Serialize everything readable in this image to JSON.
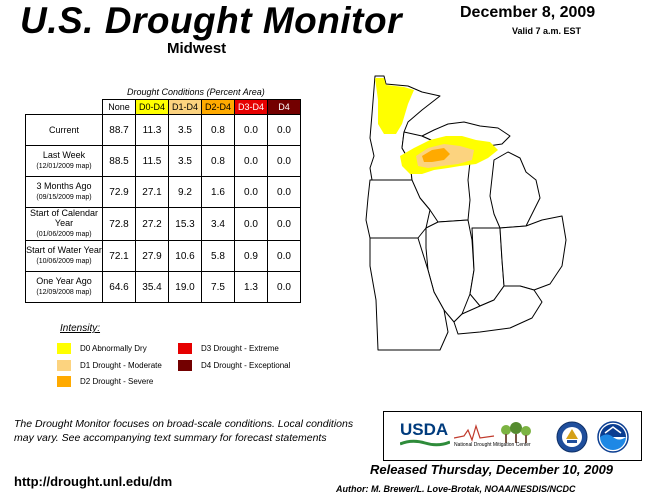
{
  "header": {
    "title": "U.S. Drought Monitor",
    "region": "Midwest",
    "date": "December 8, 2009",
    "valid": "Valid 7 a.m. EST"
  },
  "table": {
    "caption": "Drought Conditions (Percent Area)",
    "columns": [
      "None",
      "D0-D4",
      "D1-D4",
      "D2-D4",
      "D3-D4",
      "D4"
    ],
    "rows": [
      {
        "label": "Current",
        "sub": "",
        "values": [
          "88.7",
          "11.3",
          "3.5",
          "0.8",
          "0.0",
          "0.0"
        ]
      },
      {
        "label": "Last Week",
        "sub": "(12/01/2009 map)",
        "values": [
          "88.5",
          "11.5",
          "3.5",
          "0.8",
          "0.0",
          "0.0"
        ]
      },
      {
        "label": "3 Months Ago",
        "sub": "(09/15/2009 map)",
        "values": [
          "72.9",
          "27.1",
          "9.2",
          "1.6",
          "0.0",
          "0.0"
        ]
      },
      {
        "label": "Start of Calendar Year",
        "sub": "(01/06/2009 map)",
        "values": [
          "72.8",
          "27.2",
          "15.3",
          "3.4",
          "0.0",
          "0.0"
        ]
      },
      {
        "label": "Start of Water Year",
        "sub": "(10/06/2009 map)",
        "values": [
          "72.1",
          "27.9",
          "10.6",
          "5.8",
          "0.9",
          "0.0"
        ]
      },
      {
        "label": "One Year Ago",
        "sub": "(12/09/2008 map)",
        "values": [
          "64.6",
          "35.4",
          "19.0",
          "7.5",
          "1.3",
          "0.0"
        ]
      }
    ]
  },
  "legend": {
    "title": "Intensity:",
    "items": [
      {
        "label": "D0 Abnormally Dry",
        "color": "#ffff00"
      },
      {
        "label": "D1 Drought - Moderate",
        "color": "#fcd37f"
      },
      {
        "label": "D2 Drought - Severe",
        "color": "#ffaa00"
      },
      {
        "label": "D3 Drought - Extreme",
        "color": "#e60000"
      },
      {
        "label": "D4 Drought - Exceptional",
        "color": "#730000"
      }
    ]
  },
  "footer": {
    "note": "The Drought Monitor focuses on broad-scale conditions. Local conditions may vary. See accompanying text summary for forecast statements",
    "url": "http://drought.unl.edu/dm",
    "released": "Released Thursday, December 10, 2009",
    "author": "Author: M. Brewer/L. Love-Brotak, NOAA/NESDIS/NCDC"
  },
  "logos": {
    "usda": "USDA",
    "ndmc_prefix": "National",
    "ndmc_name": "Drought Mitigation Center"
  },
  "map": {
    "colors": {
      "d0": "#ffff00",
      "d1": "#fcd37f",
      "d2": "#ffaa00"
    }
  }
}
